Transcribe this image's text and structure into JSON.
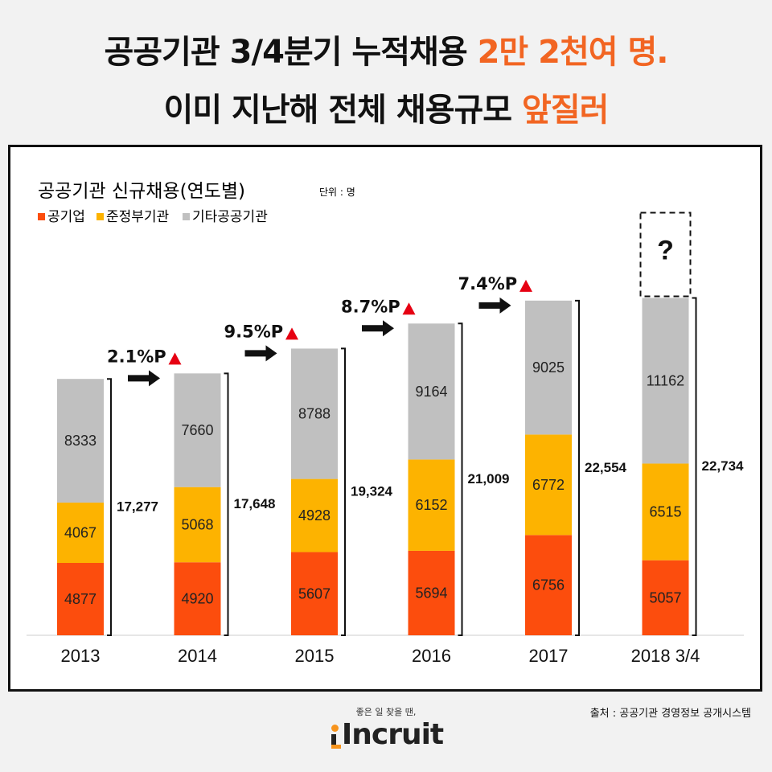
{
  "headline": {
    "line1_prefix": "공공기관 3/4분기 누적채용 ",
    "line1_highlight": "2만 2천여 명.",
    "line2_prefix": "이미 지난해 전체 채용규모 ",
    "line2_highlight": "앞질러"
  },
  "colors": {
    "public_corp": "#fc4d0d",
    "quasi_gov": "#fdb300",
    "other_public": "#c0c0c0",
    "highlight": "#f26522",
    "growth_triangle": "#e60012"
  },
  "chart_data": {
    "type": "bar",
    "stacked": true,
    "title": "공공기관 신규채용(연도별)",
    "unit": "단위 : 명",
    "categories": [
      "2013",
      "2014",
      "2015",
      "2016",
      "2017",
      "2018 3/4"
    ],
    "series": [
      {
        "name": "공기업",
        "values": [
          4877,
          4920,
          5607,
          5694,
          6756,
          5057
        ]
      },
      {
        "name": "준정부기관",
        "values": [
          4067,
          5068,
          4928,
          6152,
          6772,
          6515
        ]
      },
      {
        "name": "기타공공기관",
        "values": [
          8333,
          7660,
          8788,
          9164,
          9025,
          11162
        ]
      }
    ],
    "totals": [
      "17,277",
      "17,648",
      "19,324",
      "21,009",
      "22,554",
      "22,734"
    ],
    "growth": [
      "2.1%P",
      "9.5%P",
      "8.7%P",
      "7.4%P"
    ],
    "unknown_marker": "?",
    "ylim": [
      0,
      26500
    ],
    "legend_position": "top-left"
  },
  "source": "출처 : 공공기관 경영정보 공개시스템",
  "footer": {
    "tagline": "좋은 일 찾을 땐,",
    "logo_text": "Incruit"
  }
}
